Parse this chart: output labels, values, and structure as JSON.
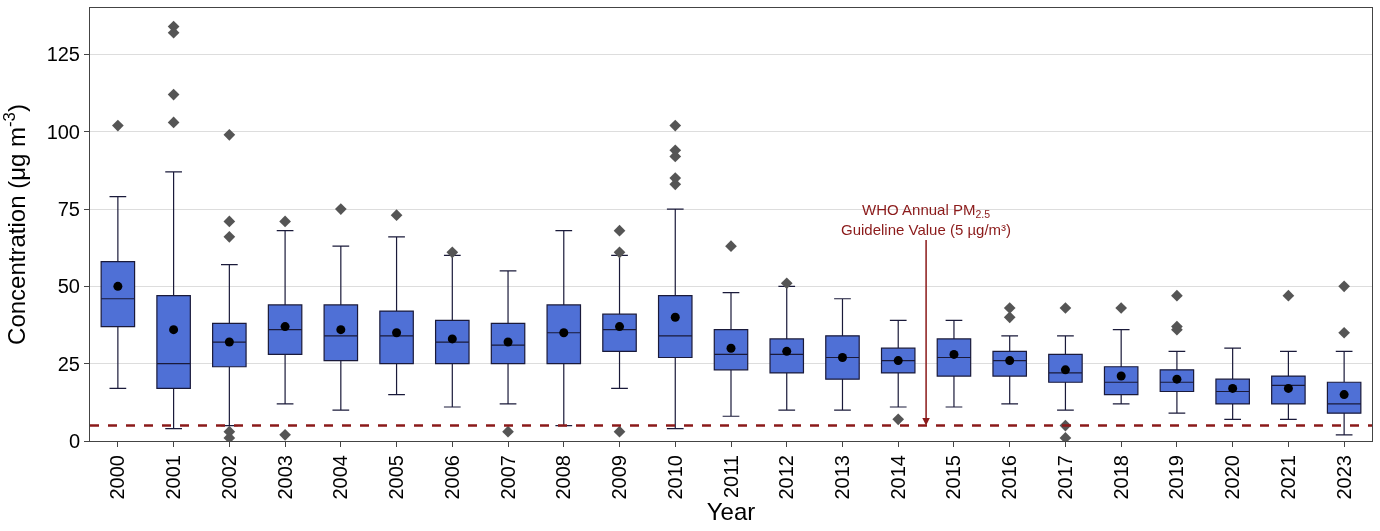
{
  "chart_data": {
    "type": "box",
    "xlabel": "Year",
    "ylabel": "Concentration (μg m$^{-3}$)",
    "categories": [
      "2000",
      "2001",
      "2002",
      "2003",
      "2004",
      "2005",
      "2006",
      "2007",
      "2008",
      "2009",
      "2010",
      "2011",
      "2012",
      "2013",
      "2014",
      "2015",
      "2016",
      "2017",
      "2018",
      "2019",
      "2020",
      "2021",
      "2023"
    ],
    "color": "#4f70d6",
    "boxes": [
      {
        "low": 17,
        "q1": 37,
        "median": 46,
        "q3": 58,
        "high": 79,
        "mean": 50,
        "outliers": [
          102
        ]
      },
      {
        "low": 4,
        "q1": 17,
        "median": 25,
        "q3": 47,
        "high": 87,
        "mean": 36,
        "outliers": [
          103,
          112,
          132,
          134
        ]
      },
      {
        "low": 5,
        "q1": 24,
        "median": 32,
        "q3": 38,
        "high": 57,
        "mean": 32,
        "outliers": [
          99,
          71,
          66,
          1,
          3
        ]
      },
      {
        "low": 12,
        "q1": 28,
        "median": 36,
        "q3": 44,
        "high": 68,
        "mean": 37,
        "outliers": [
          71,
          2
        ]
      },
      {
        "low": 10,
        "q1": 26,
        "median": 34,
        "q3": 44,
        "high": 63,
        "mean": 36,
        "outliers": [
          75
        ]
      },
      {
        "low": 15,
        "q1": 25,
        "median": 34,
        "q3": 42,
        "high": 66,
        "mean": 35,
        "outliers": [
          73
        ]
      },
      {
        "low": 11,
        "q1": 25,
        "median": 32,
        "q3": 39,
        "high": 60,
        "mean": 33,
        "outliers": [
          61
        ]
      },
      {
        "low": 12,
        "q1": 25,
        "median": 31,
        "q3": 38,
        "high": 55,
        "mean": 32,
        "outliers": [
          3
        ]
      },
      {
        "low": 5,
        "q1": 25,
        "median": 35,
        "q3": 44,
        "high": 68,
        "mean": 35
      },
      {
        "low": 17,
        "q1": 29,
        "median": 36,
        "q3": 41,
        "high": 60,
        "mean": 37,
        "outliers": [
          68,
          61,
          3
        ]
      },
      {
        "low": 4,
        "q1": 27,
        "median": 34,
        "q3": 47,
        "high": 75,
        "mean": 40,
        "outliers": [
          83,
          85,
          92,
          94,
          102
        ]
      },
      {
        "low": 8,
        "q1": 23,
        "median": 28,
        "q3": 36,
        "high": 48,
        "mean": 30,
        "outliers": [
          63
        ]
      },
      {
        "low": 10,
        "q1": 22,
        "median": 28,
        "q3": 33,
        "high": 50,
        "mean": 29,
        "outliers": [
          51
        ]
      },
      {
        "low": 10,
        "q1": 20,
        "median": 27,
        "q3": 34,
        "high": 46,
        "mean": 27
      },
      {
        "low": 11,
        "q1": 22,
        "median": 26,
        "q3": 30,
        "high": 39,
        "mean": 26,
        "outliers": [
          7
        ]
      },
      {
        "low": 11,
        "q1": 21,
        "median": 27,
        "q3": 33,
        "high": 39,
        "mean": 28
      },
      {
        "low": 12,
        "q1": 21,
        "median": 26,
        "q3": 29,
        "high": 34,
        "mean": 26,
        "outliers": [
          40,
          43
        ]
      },
      {
        "low": 10,
        "q1": 19,
        "median": 22,
        "q3": 28,
        "high": 34,
        "mean": 23,
        "outliers": [
          43,
          5,
          1
        ]
      },
      {
        "low": 12,
        "q1": 15,
        "median": 19,
        "q3": 24,
        "high": 36,
        "mean": 21,
        "outliers": [
          43
        ]
      },
      {
        "low": 9,
        "q1": 16,
        "median": 19,
        "q3": 23,
        "high": 29,
        "mean": 20,
        "outliers": [
          47,
          37,
          36
        ]
      },
      {
        "low": 7,
        "q1": 12,
        "median": 16,
        "q3": 20,
        "high": 30,
        "mean": 17
      },
      {
        "low": 7,
        "q1": 12,
        "median": 18,
        "q3": 21,
        "high": 29,
        "mean": 17,
        "outliers": [
          47
        ]
      },
      {
        "low": 2,
        "q1": 9,
        "median": 12,
        "q3": 19,
        "high": 29,
        "mean": 15,
        "outliers": [
          50,
          35
        ]
      }
    ],
    "ylim": [
      0,
      140
    ],
    "yticks": [
      0,
      25,
      50,
      75,
      100,
      125
    ],
    "grid": "y",
    "ref_lines": [
      {
        "axis": "y",
        "value": 5,
        "label": "WHO Annual PM$_{2.5}$\nGuideline Value (5 µg/m³)",
        "color": "#8b1a1a",
        "line_style": "dashed"
      }
    ]
  }
}
